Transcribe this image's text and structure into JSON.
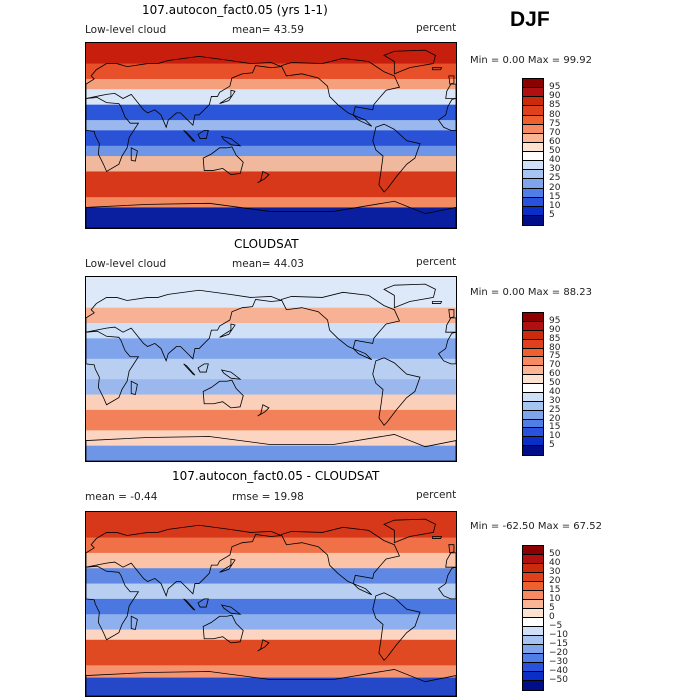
{
  "season": "DJF",
  "panels": [
    {
      "title": "107.autocon_fact0.05 (yrs 1-1)",
      "left_label": "Low-level cloud",
      "center_label": "mean=  43.59",
      "right_label": "percent",
      "minmax": "Min =    0.00 Max =  99.92",
      "colorbar": {
        "labels": [
          "95",
          "90",
          "85",
          "80",
          "75",
          "70",
          "60",
          "50",
          "40",
          "30",
          "25",
          "20",
          "15",
          "10",
          "5"
        ],
        "colors": [
          "#8b0000",
          "#b01010",
          "#cc2a0c",
          "#e0401c",
          "#f0602e",
          "#f78a62",
          "#fbb595",
          "#fde2cf",
          "#ffffff",
          "#cfe0f7",
          "#a6c4f2",
          "#7ea4ec",
          "#4f7ee6",
          "#2851dc",
          "#0a2fc8",
          "#000e8a"
        ]
      },
      "zones": [
        {
          "lat_top": 90,
          "lat_bottom": 70,
          "color": "#c81e0e"
        },
        {
          "lat_top": 70,
          "lat_bottom": 55,
          "color": "#e8502a"
        },
        {
          "lat_top": 55,
          "lat_bottom": 45,
          "color": "#f5a07d"
        },
        {
          "lat_top": 45,
          "lat_bottom": 30,
          "color": "#d9e6f7"
        },
        {
          "lat_top": 30,
          "lat_bottom": 15,
          "color": "#2b56d9"
        },
        {
          "lat_top": 15,
          "lat_bottom": 5,
          "color": "#9ab8ee"
        },
        {
          "lat_top": 5,
          "lat_bottom": -10,
          "color": "#2a52d6"
        },
        {
          "lat_top": -10,
          "lat_bottom": -20,
          "color": "#6e95e6"
        },
        {
          "lat_top": -20,
          "lat_bottom": -35,
          "color": "#f0b89c"
        },
        {
          "lat_top": -35,
          "lat_bottom": -60,
          "color": "#d8381a"
        },
        {
          "lat_top": -60,
          "lat_bottom": -70,
          "color": "#f28a62"
        },
        {
          "lat_top": -70,
          "lat_bottom": -90,
          "color": "#0a1fa0"
        }
      ]
    },
    {
      "title": "CLOUDSAT",
      "left_label": "Low-level cloud",
      "center_label": "mean=  44.03",
      "right_label": "percent",
      "minmax": "Min =    0.00 Max =  88.23",
      "colorbar": {
        "labels": [
          "95",
          "90",
          "85",
          "80",
          "75",
          "70",
          "60",
          "50",
          "40",
          "30",
          "25",
          "20",
          "15",
          "10",
          "5"
        ],
        "colors": [
          "#8b0000",
          "#b01010",
          "#cc2a0c",
          "#e0401c",
          "#f0602e",
          "#f78a62",
          "#fbb595",
          "#fde2cf",
          "#ffffff",
          "#cfe0f7",
          "#a6c4f2",
          "#7ea4ec",
          "#4f7ee6",
          "#2851dc",
          "#0a2fc8",
          "#000e8a"
        ]
      },
      "zones": [
        {
          "lat_top": 90,
          "lat_bottom": 60,
          "color": "#dde8f8"
        },
        {
          "lat_top": 60,
          "lat_bottom": 45,
          "color": "#f7b295"
        },
        {
          "lat_top": 45,
          "lat_bottom": 30,
          "color": "#cfe0f7"
        },
        {
          "lat_top": 30,
          "lat_bottom": 10,
          "color": "#7fa4ec"
        },
        {
          "lat_top": 10,
          "lat_bottom": -10,
          "color": "#b8cff2"
        },
        {
          "lat_top": -10,
          "lat_bottom": -25,
          "color": "#9ab8ee"
        },
        {
          "lat_top": -25,
          "lat_bottom": -40,
          "color": "#fad0bb"
        },
        {
          "lat_top": -40,
          "lat_bottom": -60,
          "color": "#f28058"
        },
        {
          "lat_top": -60,
          "lat_bottom": -75,
          "color": "#fbd5c2"
        },
        {
          "lat_top": -75,
          "lat_bottom": -90,
          "color": "#6e95e6"
        }
      ]
    },
    {
      "title": "107.autocon_fact0.05 - CLOUDSAT",
      "left_label": "mean =  -0.44",
      "center_label": "rmse =  19.98",
      "right_label": "percent",
      "minmax": "Min = -62.50 Max =  67.52",
      "colorbar": {
        "labels": [
          "50",
          "40",
          "30",
          "20",
          "15",
          "10",
          "5",
          "0",
          "−5",
          "−10",
          "−15",
          "−20",
          "−30",
          "−40",
          "−50"
        ],
        "colors": [
          "#8b0000",
          "#b01010",
          "#cc2a0c",
          "#e0401c",
          "#f0602e",
          "#f78a62",
          "#fbb595",
          "#fde2cf",
          "#ffffff",
          "#cfe0f7",
          "#a6c4f2",
          "#7ea4ec",
          "#4f7ee6",
          "#2851dc",
          "#0a2fc8",
          "#000e8a"
        ]
      },
      "zones": [
        {
          "lat_top": 90,
          "lat_bottom": 65,
          "color": "#d8381a"
        },
        {
          "lat_top": 65,
          "lat_bottom": 50,
          "color": "#f07048"
        },
        {
          "lat_top": 50,
          "lat_bottom": 35,
          "color": "#fbc3a8"
        },
        {
          "lat_top": 35,
          "lat_bottom": 20,
          "color": "#5e88e4"
        },
        {
          "lat_top": 20,
          "lat_bottom": 5,
          "color": "#b8cff2"
        },
        {
          "lat_top": 5,
          "lat_bottom": -10,
          "color": "#4a78e0"
        },
        {
          "lat_top": -10,
          "lat_bottom": -25,
          "color": "#8fb0ee"
        },
        {
          "lat_top": -25,
          "lat_bottom": -35,
          "color": "#fbd5c2"
        },
        {
          "lat_top": -35,
          "lat_bottom": -60,
          "color": "#e04a22"
        },
        {
          "lat_top": -60,
          "lat_bottom": -72,
          "color": "#f59470"
        },
        {
          "lat_top": -72,
          "lat_bottom": -90,
          "color": "#2548c8"
        }
      ]
    }
  ]
}
